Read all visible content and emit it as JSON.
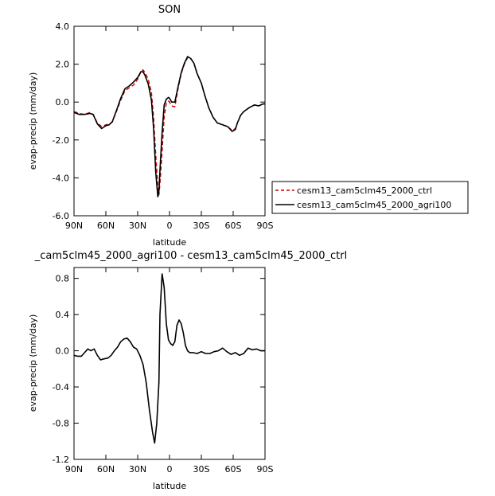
{
  "chart_data": [
    {
      "type": "line",
      "title": "SON",
      "xlabel": "latitude",
      "ylabel": "evap-precip (mm/day)",
      "xlim": [
        90,
        -90
      ],
      "ylim": [
        -6,
        4
      ],
      "xticks": [
        90,
        60,
        30,
        0,
        -30,
        -60,
        -90
      ],
      "xticklabels": [
        "90N",
        "60N",
        "30N",
        "0",
        "30S",
        "60S",
        "90S"
      ],
      "yticks": [
        -6,
        -4,
        -2,
        0,
        2,
        4
      ],
      "yticklabels": [
        "-6.0",
        "-4.0",
        "-2.0",
        "0.0",
        "2.0",
        "4.0"
      ],
      "grid": false,
      "legend_position": "right, below plot",
      "series": [
        {
          "name": "cesm13_cam5clm45_2000_ctrl",
          "color": "#cc0000",
          "dash": "dashed",
          "x": [
            90,
            85,
            80,
            75,
            72,
            68,
            64,
            60,
            57,
            54,
            50,
            46,
            42,
            38,
            34,
            30,
            27,
            25,
            23,
            20,
            17,
            15,
            13,
            11,
            10,
            9,
            7,
            5,
            3,
            1,
            0,
            -2,
            -5,
            -8,
            -11,
            -14,
            -17,
            -20,
            -23,
            -26,
            -30,
            -33,
            -37,
            -41,
            -45,
            -50,
            -55,
            -59,
            -62,
            -64,
            -67,
            -70,
            -75,
            -80,
            -84,
            -88,
            -90
          ],
          "y": [
            -0.5,
            -0.6,
            -0.65,
            -0.55,
            -0.65,
            -1.1,
            -1.3,
            -1.2,
            -1.15,
            -1.05,
            -0.5,
            0.1,
            0.6,
            0.75,
            0.9,
            1.2,
            1.6,
            1.7,
            1.55,
            1.2,
            0.5,
            -0.8,
            -2.8,
            -4.4,
            -4.9,
            -4.3,
            -2.6,
            -0.8,
            -0.05,
            0.05,
            0.0,
            -0.2,
            -0.25,
            0.7,
            1.5,
            2.0,
            2.35,
            2.3,
            2.05,
            1.5,
            1.0,
            0.4,
            -0.3,
            -0.8,
            -1.1,
            -1.2,
            -1.3,
            -1.5,
            -1.4,
            -1.1,
            -0.7,
            -0.5,
            -0.3,
            -0.15,
            -0.2,
            -0.1,
            -0.1
          ]
        },
        {
          "name": "cesm13_cam5clm45_2000_agri100",
          "color": "#000000",
          "dash": "solid",
          "x": [
            90,
            85,
            80,
            75,
            72,
            68,
            64,
            60,
            57,
            54,
            50,
            46,
            42,
            38,
            34,
            30,
            27,
            25,
            23,
            20,
            17,
            15,
            13,
            11,
            10,
            9,
            7,
            5,
            3,
            1,
            0,
            -2,
            -5,
            -8,
            -11,
            -14,
            -17,
            -20,
            -23,
            -26,
            -30,
            -33,
            -37,
            -41,
            -45,
            -50,
            -55,
            -59,
            -62,
            -64,
            -67,
            -70,
            -75,
            -80,
            -84,
            -88,
            -90
          ],
          "y": [
            -0.55,
            -0.65,
            -0.65,
            -0.6,
            -0.65,
            -1.15,
            -1.4,
            -1.25,
            -1.2,
            -1.05,
            -0.45,
            0.2,
            0.7,
            0.85,
            1.05,
            1.3,
            1.6,
            1.6,
            1.4,
            0.95,
            0.1,
            -1.4,
            -3.7,
            -5.0,
            -4.7,
            -3.6,
            -1.6,
            -0.15,
            0.15,
            0.25,
            0.2,
            0.0,
            0.0,
            0.8,
            1.55,
            2.05,
            2.4,
            2.3,
            2.05,
            1.5,
            1.0,
            0.4,
            -0.3,
            -0.8,
            -1.1,
            -1.2,
            -1.3,
            -1.55,
            -1.45,
            -1.1,
            -0.7,
            -0.5,
            -0.3,
            -0.15,
            -0.2,
            -0.1,
            -0.1
          ]
        }
      ],
      "legend": [
        "cesm13_cam5clm45_2000_ctrl",
        "cesm13_cam5clm45_2000_agri100"
      ]
    },
    {
      "type": "line",
      "title": "_cam5clm45_2000_agri100 - cesm13_cam5clm45_2000_ctrl",
      "xlabel": "latitude",
      "ylabel": "evap-precip (mm/day)",
      "xlim": [
        90,
        -90
      ],
      "ylim": [
        -1.2,
        0.92
      ],
      "xticks": [
        90,
        60,
        30,
        0,
        -30,
        -60,
        -90
      ],
      "xticklabels": [
        "90N",
        "60N",
        "30N",
        "0",
        "30S",
        "60S",
        "90S"
      ],
      "yticks": [
        -1.2,
        -0.8,
        -0.4,
        0.0,
        0.4,
        0.8
      ],
      "yticklabels": [
        "-1.2",
        "-0.8",
        "-0.4",
        "0.0",
        "0.4",
        "0.8"
      ],
      "grid": false,
      "series": [
        {
          "color": "#000000",
          "dash": "solid",
          "x": [
            90,
            87,
            83,
            80,
            77,
            74,
            71,
            68,
            65,
            62,
            58,
            55,
            52,
            49,
            46,
            43,
            40,
            37,
            34,
            31,
            28,
            25,
            22,
            19,
            16,
            14,
            12,
            10,
            9,
            7,
            5,
            3,
            1,
            -1,
            -3,
            -5,
            -7,
            -9,
            -11,
            -13,
            -15,
            -17,
            -19,
            -22,
            -26,
            -30,
            -34,
            -38,
            -42,
            -46,
            -50,
            -54,
            -58,
            -62,
            -66,
            -70,
            -74,
            -78,
            -82,
            -86,
            -90
          ],
          "y": [
            -0.05,
            -0.06,
            -0.06,
            -0.02,
            0.02,
            0.0,
            0.02,
            -0.05,
            -0.1,
            -0.09,
            -0.08,
            -0.05,
            0.0,
            0.04,
            0.1,
            0.13,
            0.14,
            0.1,
            0.04,
            0.02,
            -0.05,
            -0.15,
            -0.35,
            -0.65,
            -0.9,
            -1.02,
            -0.8,
            -0.35,
            0.4,
            0.85,
            0.7,
            0.3,
            0.12,
            0.08,
            0.06,
            0.1,
            0.28,
            0.34,
            0.3,
            0.2,
            0.06,
            0.0,
            -0.02,
            -0.02,
            -0.03,
            -0.01,
            -0.03,
            -0.03,
            -0.01,
            0.0,
            0.03,
            -0.01,
            -0.04,
            -0.02,
            -0.05,
            -0.03,
            0.03,
            0.01,
            0.02,
            0.0,
            0.0
          ]
        }
      ]
    }
  ]
}
